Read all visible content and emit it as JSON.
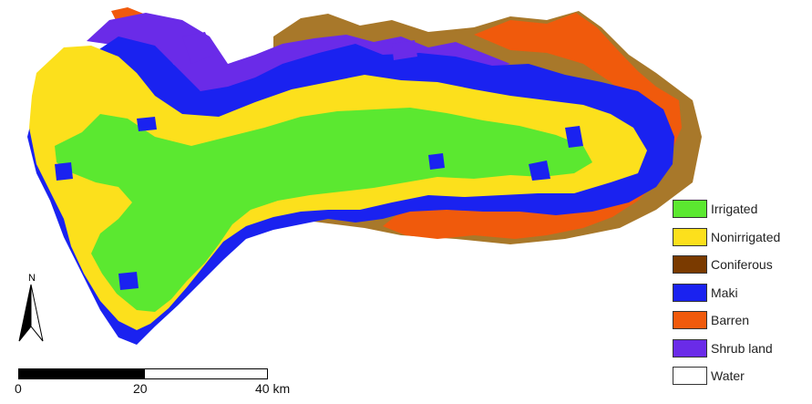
{
  "map": {
    "colors": {
      "irrigated": "#5BE830",
      "nonirrigated": "#FCE01C",
      "coniferous": "#7A3A00",
      "maki": "#1A22F0",
      "barren": "#F05A0C",
      "shrub_land": "#6A2BE8",
      "water": "#FFFFFF",
      "edge": "#A8782A"
    }
  },
  "legend": {
    "items": [
      {
        "label": "Irrigated",
        "color": "#5BE830"
      },
      {
        "label": "Nonirrigated",
        "color": "#FCE01C"
      },
      {
        "label": "Coniferous",
        "color": "#7A3A00"
      },
      {
        "label": "Maki",
        "color": "#1A22F0"
      },
      {
        "label": "Barren",
        "color": "#F05A0C"
      },
      {
        "label": "Shrub land",
        "color": "#6A2BE8"
      },
      {
        "label": "Water",
        "color": "#FFFFFF"
      }
    ]
  },
  "north_arrow": {
    "label": "N",
    "icon": "north-arrow-icon"
  },
  "scale_bar": {
    "ticks": [
      "0",
      "20",
      "40 km"
    ]
  }
}
